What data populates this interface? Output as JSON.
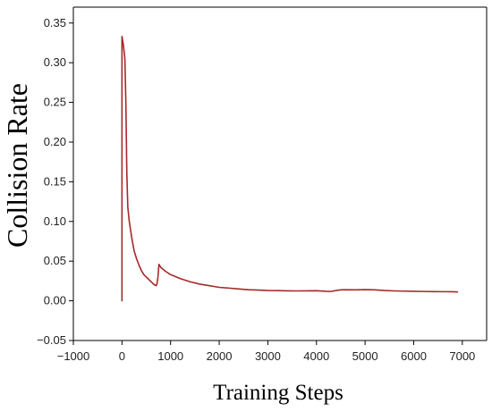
{
  "chart_data": {
    "type": "line",
    "title": "",
    "xlabel": "Training Steps",
    "ylabel": "Collision Rate",
    "xlim": [
      -1000,
      7500
    ],
    "ylim": [
      -0.05,
      0.37
    ],
    "x_ticks": [
      -1000,
      0,
      1000,
      2000,
      3000,
      4000,
      5000,
      6000,
      7000
    ],
    "y_ticks": [
      -0.05,
      0.0,
      0.05,
      0.1,
      0.15,
      0.2,
      0.25,
      0.3,
      0.35
    ],
    "x_tick_labels": [
      "−1000",
      "0",
      "1000",
      "2000",
      "3000",
      "4000",
      "5000",
      "6000",
      "7000"
    ],
    "y_tick_labels": [
      "−0.05",
      "0.00",
      "0.05",
      "0.10",
      "0.15",
      "0.20",
      "0.25",
      "0.30",
      "0.35"
    ],
    "grid": false,
    "legend": "none",
    "series": [
      {
        "color": "#a52a2a",
        "x": [
          0,
          0,
          30,
          60,
          80,
          100,
          120,
          150,
          200,
          250,
          300,
          350,
          400,
          450,
          500,
          550,
          600,
          650,
          700,
          720,
          740,
          760,
          800,
          900,
          1000,
          1200,
          1400,
          1600,
          1800,
          2000,
          2200,
          2400,
          2600,
          2800,
          3000,
          3200,
          3400,
          3600,
          3800,
          4000,
          4200,
          4300,
          4400,
          4500,
          4600,
          4800,
          5000,
          5200,
          5400,
          5600,
          5800,
          6000,
          6200,
          6400,
          6600,
          6800,
          6900
        ],
        "y": [
          0.0,
          0.333,
          0.322,
          0.305,
          0.25,
          0.16,
          0.118,
          0.1,
          0.08,
          0.063,
          0.053,
          0.045,
          0.038,
          0.033,
          0.03,
          0.027,
          0.024,
          0.021,
          0.019,
          0.021,
          0.03,
          0.046,
          0.042,
          0.037,
          0.033,
          0.028,
          0.024,
          0.021,
          0.019,
          0.017,
          0.016,
          0.015,
          0.014,
          0.0135,
          0.013,
          0.0128,
          0.0126,
          0.0125,
          0.0126,
          0.0127,
          0.012,
          0.0118,
          0.013,
          0.0138,
          0.014,
          0.0138,
          0.0141,
          0.0138,
          0.013,
          0.0125,
          0.0122,
          0.012,
          0.0118,
          0.0116,
          0.0115,
          0.0114,
          0.0112
        ]
      }
    ]
  }
}
